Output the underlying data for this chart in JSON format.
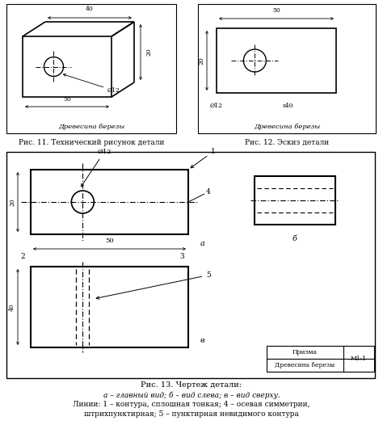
{
  "bg_color": "#ffffff",
  "fig_width": 4.74,
  "fig_height": 5.52,
  "dpi": 100,
  "caption11": "Рис. 11. Технический рисунок детали",
  "caption12": "Рис. 12. Эскиз детали",
  "caption13_line1": "Рис. 13. Чертеж детали:",
  "caption13_line2": "а – главный вид; б – вид слева; в – вид сверху.",
  "caption13_line3": "Линии: 1 – контура, сплошная тонкая; 4 – осевая симметрии,",
  "caption13_line4": "штрихпунктирная; 5 – пунктирная невидимого контура"
}
